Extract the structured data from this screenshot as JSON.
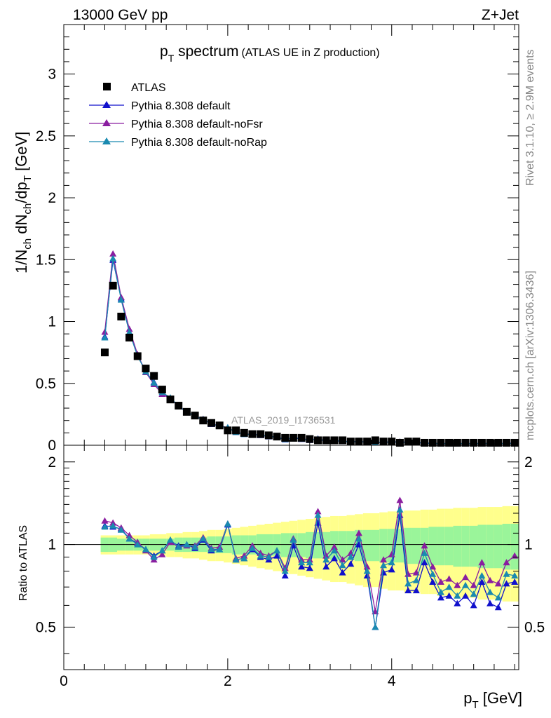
{
  "header": {
    "energy": "13000 GeV pp",
    "process": "Z+Jet",
    "title_main": "p",
    "title_sub": "T",
    "title_rest": " spectrum",
    "title_note": "(ATLAS UE in Z production)",
    "side_top": "Rivet 3.1.10, ≥ 2.9M events",
    "side_bottom": "mcplots.cern.ch [arXiv:1306.3436]",
    "analysis": "ATLAS_2019_I1736531"
  },
  "axes": {
    "ylabel_main": "1/N_ch dN_ch/dp_T [GeV]",
    "ylabel_ratio": "Ratio to ATLAS",
    "xlabel": "p_T [GeV]"
  },
  "legend": {
    "data": "ATLAS",
    "mc1": "Pythia 8.308 default",
    "mc2": "Pythia 8.308 default-noFsr",
    "mc3": "Pythia 8.308 default-noRap"
  },
  "chart_data": {
    "type": "scatter",
    "title": "p_T spectrum (ATLAS UE in Z production)",
    "xlabel": "p_T [GeV]",
    "ylabel": "1/N_ch dN_ch/dp_T [GeV]",
    "xlim": [
      0,
      5.55
    ],
    "ylim": [
      0,
      3.4
    ],
    "ratio_ylim": [
      0.35,
      2.3
    ],
    "x_ticks": [
      0,
      2,
      4
    ],
    "y_ticks": [
      0,
      0.5,
      1,
      1.5,
      2,
      2.5,
      3
    ],
    "ratio_ticks": [
      0.5,
      1,
      2
    ],
    "legend_position": "top-left",
    "x": [
      0.5,
      0.6,
      0.7,
      0.8,
      0.9,
      1.0,
      1.1,
      1.2,
      1.3,
      1.4,
      1.5,
      1.6,
      1.7,
      1.8,
      1.9,
      2.0,
      2.1,
      2.2,
      2.3,
      2.4,
      2.5,
      2.6,
      2.7,
      2.8,
      2.9,
      3.0,
      3.1,
      3.2,
      3.3,
      3.4,
      3.5,
      3.6,
      3.7,
      3.8,
      3.9,
      4.0,
      4.1,
      4.2,
      4.3,
      4.4,
      4.5,
      4.6,
      4.7,
      4.8,
      4.9,
      5.0,
      5.1,
      5.2,
      5.3,
      5.4,
      5.5
    ],
    "data": [
      0.75,
      1.29,
      1.04,
      0.87,
      0.72,
      0.62,
      0.56,
      0.45,
      0.37,
      0.32,
      0.27,
      0.24,
      0.2,
      0.18,
      0.16,
      0.12,
      0.12,
      0.1,
      0.09,
      0.09,
      0.08,
      0.07,
      0.06,
      0.06,
      0.06,
      0.05,
      0.04,
      0.04,
      0.04,
      0.04,
      0.03,
      0.03,
      0.03,
      0.04,
      0.03,
      0.03,
      0.02,
      0.03,
      0.03,
      0.02,
      0.02,
      0.02,
      0.02,
      0.02,
      0.02,
      0.02,
      0.02,
      0.02,
      0.02,
      0.02,
      0.02
    ],
    "band_inner": [
      0.06,
      0.06,
      0.05,
      0.05,
      0.05,
      0.05,
      0.05,
      0.05,
      0.05,
      0.06,
      0.06,
      0.06,
      0.06,
      0.07,
      0.07,
      0.07,
      0.08,
      0.08,
      0.08,
      0.09,
      0.09,
      0.09,
      0.1,
      0.1,
      0.1,
      0.11,
      0.11,
      0.11,
      0.12,
      0.12,
      0.12,
      0.13,
      0.13,
      0.13,
      0.14,
      0.14,
      0.14,
      0.15,
      0.15,
      0.15,
      0.16,
      0.16,
      0.16,
      0.17,
      0.17,
      0.17,
      0.18,
      0.18,
      0.18,
      0.19,
      0.19
    ],
    "band_outer": [
      0.08,
      0.08,
      0.08,
      0.08,
      0.08,
      0.08,
      0.09,
      0.09,
      0.1,
      0.1,
      0.11,
      0.11,
      0.12,
      0.13,
      0.13,
      0.14,
      0.15,
      0.16,
      0.17,
      0.18,
      0.19,
      0.2,
      0.21,
      0.22,
      0.23,
      0.24,
      0.25,
      0.26,
      0.27,
      0.27,
      0.28,
      0.29,
      0.3,
      0.3,
      0.31,
      0.32,
      0.32,
      0.33,
      0.33,
      0.34,
      0.34,
      0.35,
      0.35,
      0.36,
      0.36,
      0.36,
      0.37,
      0.37,
      0.37,
      0.38,
      0.38
    ],
    "series": [
      {
        "name": "Pythia 8.308 default",
        "color": "#1010cc",
        "ratio": [
          1.17,
          1.16,
          1.14,
          1.05,
          1.01,
          0.96,
          0.91,
          0.95,
          1.03,
          0.99,
          1.0,
          0.97,
          1.04,
          0.95,
          0.96,
          1.18,
          0.88,
          0.89,
          0.96,
          0.9,
          0.88,
          0.91,
          0.77,
          0.99,
          0.83,
          0.82,
          1.2,
          0.83,
          0.89,
          0.79,
          0.85,
          1.0,
          0.77,
          0.5,
          0.79,
          0.81,
          1.28,
          0.68,
          0.68,
          0.86,
          0.73,
          0.64,
          0.65,
          0.61,
          0.65,
          0.6,
          0.73,
          0.61,
          0.59,
          0.72,
          0.73
        ]
      },
      {
        "name": "Pythia 8.308 default-noFsr",
        "color": "#8a1ea0",
        "ratio": [
          1.22,
          1.2,
          1.15,
          1.08,
          1.02,
          0.95,
          0.88,
          0.92,
          1.02,
          0.98,
          0.99,
          0.99,
          1.06,
          0.97,
          0.98,
          1.19,
          0.89,
          0.91,
          0.99,
          0.93,
          0.91,
          0.95,
          0.82,
          1.05,
          0.88,
          0.88,
          1.32,
          0.91,
          0.98,
          0.88,
          0.93,
          1.1,
          0.83,
          0.57,
          0.88,
          0.92,
          1.45,
          0.78,
          0.79,
          0.99,
          0.83,
          0.73,
          0.75,
          0.71,
          0.76,
          0.71,
          0.86,
          0.74,
          0.72,
          0.86,
          0.91
        ]
      },
      {
        "name": "Pythia 8.308 default-noRap",
        "color": "#1a8ab0",
        "ratio": [
          1.16,
          1.17,
          1.13,
          1.05,
          1.0,
          0.96,
          0.9,
          0.95,
          1.04,
          0.98,
          1.0,
          0.98,
          1.05,
          0.96,
          0.96,
          1.19,
          0.88,
          0.89,
          0.97,
          0.91,
          0.9,
          0.95,
          0.8,
          1.04,
          0.86,
          0.86,
          1.28,
          0.88,
          0.95,
          0.84,
          0.9,
          1.05,
          0.8,
          0.5,
          0.84,
          0.86,
          1.34,
          0.72,
          0.74,
          0.93,
          0.78,
          0.67,
          0.7,
          0.65,
          0.71,
          0.66,
          0.77,
          0.67,
          0.64,
          0.78,
          0.77
        ]
      }
    ]
  }
}
